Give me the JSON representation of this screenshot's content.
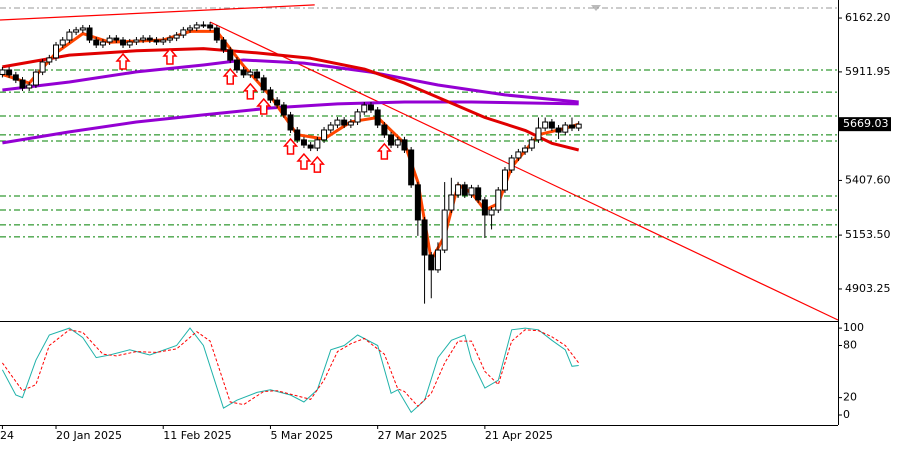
{
  "chart_data": {
    "type": "candlestick",
    "categories": [
      "24",
      null,
      null,
      null,
      null,
      null,
      null,
      null,
      "20 Jan 2025",
      null,
      null,
      null,
      null,
      null,
      null,
      null,
      null,
      null,
      null,
      null,
      null,
      null,
      null,
      null,
      "11 Feb 2025",
      null,
      null,
      null,
      null,
      null,
      null,
      null,
      null,
      null,
      null,
      null,
      null,
      null,
      null,
      null,
      "5 Mar 2025",
      null,
      null,
      null,
      null,
      null,
      null,
      null,
      null,
      null,
      null,
      null,
      null,
      null,
      null,
      null,
      "27 Mar 2025",
      null,
      null,
      null,
      null,
      null,
      null,
      null,
      null,
      null,
      null,
      null,
      null,
      null,
      null,
      null,
      "21 Apr 2025",
      null,
      null,
      null,
      null,
      null,
      null,
      null,
      null,
      null,
      null,
      null,
      null,
      null,
      null
    ],
    "open": [
      5900,
      5921,
      5898,
      5874,
      5837,
      5851,
      5911,
      5958,
      5977,
      6037,
      6060,
      6097,
      6107,
      6116,
      6060,
      6037,
      6051,
      6069,
      6060,
      6037,
      6051,
      6060,
      6069,
      6060,
      6051,
      6060,
      6069,
      6083,
      6107,
      6116,
      6130,
      6130,
      6116,
      6060,
      6014,
      5967,
      5921,
      5898,
      5911,
      5884,
      5828,
      5781,
      5758,
      5712,
      5642,
      5596,
      5572,
      5558,
      5596,
      5642,
      5665,
      5688,
      5665,
      5679,
      5726,
      5758,
      5735,
      5665,
      5619,
      5572,
      5596,
      5549,
      5387,
      5224,
      5061,
      4992,
      5084,
      5270,
      5340,
      5387,
      5340,
      5373,
      5317,
      5247,
      5270,
      5363,
      5456,
      5512,
      5540,
      5558,
      5596,
      5651,
      5679,
      5651,
      5632,
      5665,
      5651
    ],
    "high": [
      5935,
      5935,
      5912,
      5888,
      5865,
      5925,
      5972,
      5991,
      6051,
      6074,
      6111,
      6121,
      6130,
      6130,
      6074,
      6065,
      6083,
      6083,
      6074,
      6065,
      6074,
      6083,
      6083,
      6074,
      6074,
      6083,
      6097,
      6121,
      6130,
      6144,
      6147,
      6144,
      6130,
      6074,
      6028,
      5981,
      5935,
      5925,
      5925,
      5898,
      5842,
      5795,
      5772,
      5726,
      5656,
      5610,
      5586,
      5610,
      5656,
      5679,
      5702,
      5702,
      5693,
      5740,
      5772,
      5772,
      5749,
      5679,
      5633,
      5610,
      5610,
      5563,
      5401,
      5238,
      5075,
      5120,
      5400,
      5420,
      5401,
      5401,
      5387,
      5387,
      5331,
      5284,
      5377,
      5470,
      5526,
      5554,
      5572,
      5610,
      5700,
      5700,
      5693,
      5665,
      5679,
      5700,
      5683
    ],
    "low": [
      5886,
      5884,
      5860,
      5823,
      5823,
      5837,
      5897,
      5944,
      5963,
      6023,
      6046,
      6083,
      6093,
      6046,
      6023,
      6023,
      6037,
      6046,
      6023,
      6023,
      6037,
      6046,
      6046,
      6037,
      6037,
      6046,
      6055,
      6069,
      6093,
      6102,
      6116,
      6102,
      6046,
      6000,
      5953,
      5907,
      5884,
      5884,
      5870,
      5814,
      5767,
      5744,
      5698,
      5628,
      5582,
      5558,
      5544,
      5544,
      5582,
      5628,
      5651,
      5651,
      5651,
      5665,
      5712,
      5721,
      5651,
      5605,
      5558,
      5558,
      5535,
      5373,
      5150,
      4835,
      4860,
      4978,
      5070,
      5256,
      5326,
      5326,
      5326,
      5303,
      5140,
      5180,
      5256,
      5349,
      5442,
      5498,
      5526,
      5544,
      5582,
      5637,
      5637,
      5600,
      5618,
      5637,
      5637
    ],
    "close": [
      5921,
      5898,
      5874,
      5837,
      5851,
      5911,
      5958,
      5977,
      6037,
      6060,
      6097,
      6107,
      6116,
      6060,
      6037,
      6051,
      6069,
      6060,
      6037,
      6051,
      6060,
      6069,
      6060,
      6051,
      6060,
      6069,
      6083,
      6107,
      6116,
      6130,
      6130,
      6116,
      6060,
      6014,
      5967,
      5921,
      5898,
      5911,
      5884,
      5828,
      5781,
      5758,
      5712,
      5642,
      5596,
      5572,
      5558,
      5596,
      5642,
      5665,
      5688,
      5665,
      5679,
      5726,
      5758,
      5735,
      5665,
      5619,
      5572,
      5596,
      5549,
      5387,
      5224,
      5061,
      4992,
      5084,
      5270,
      5340,
      5387,
      5340,
      5373,
      5317,
      5247,
      5270,
      5363,
      5456,
      5512,
      5540,
      5558,
      5596,
      5651,
      5679,
      5651,
      5632,
      5665,
      5651,
      5669.03
    ],
    "up_color": "#ffffff",
    "down_color": "#000000",
    "outline_color": "#000000",
    "xlim": [
      -0.36,
      124.7
    ],
    "ylim": [
      4759,
      6246
    ],
    "yticks": [
      {
        "value": 6162.2,
        "label": "6162.20"
      },
      {
        "value": 5911.95,
        "label": "5911.95"
      },
      {
        "value": 5407.6,
        "label": "5407.60"
      },
      {
        "value": 5153.5,
        "label": "5153.50"
      },
      {
        "value": 4903.25,
        "label": "4903.25"
      }
    ],
    "lines": [
      {
        "color": "#9400d3",
        "width": 3,
        "x": [
          0,
          10,
          20,
          30,
          40,
          50,
          60,
          70,
          86
        ],
        "values": [
          5582,
          5633,
          5679,
          5712,
          5744,
          5763,
          5772,
          5772,
          5763
        ]
      },
      {
        "color": "#9400d3",
        "width": 3,
        "x": [
          0,
          10,
          20,
          30,
          36,
          45,
          55,
          65,
          75,
          86
        ],
        "values": [
          5828,
          5865,
          5912,
          5944,
          5967,
          5953,
          5911,
          5851,
          5805,
          5772
        ]
      },
      {
        "color": "#e00000",
        "width": 3,
        "x": [
          0,
          10,
          20,
          30,
          38,
          46,
          54,
          60,
          66,
          72,
          78,
          82,
          86
        ],
        "values": [
          5935,
          5990,
          6010,
          6020,
          6000,
          5975,
          5925,
          5860,
          5780,
          5700,
          5640,
          5580,
          5549
        ]
      },
      {
        "color": "#ff4500",
        "width": 3,
        "x": [
          0,
          4,
          8,
          12,
          16,
          20,
          24,
          28,
          32,
          36,
          40,
          44,
          48,
          52,
          56,
          60,
          62,
          64,
          66,
          68,
          70,
          72,
          74,
          76,
          80,
          84,
          86
        ],
        "values": [
          5900,
          5860,
          6000,
          6090,
          6050,
          6055,
          6060,
          6100,
          6100,
          5940,
          5800,
          5620,
          5600,
          5680,
          5700,
          5580,
          5400,
          5038,
          5150,
          5387,
          5350,
          5270,
          5300,
          5470,
          5620,
          5650,
          5669
        ]
      }
    ],
    "trendlines": [
      {
        "color": "#ff0000",
        "x": [
          31,
          124.7
        ],
        "values": [
          6144,
          4759
        ]
      },
      {
        "color": "#ff0000",
        "x": [
          -0.36,
          46.6
        ],
        "values": [
          6153,
          6223
        ]
      }
    ],
    "levels": [
      {
        "value": 6209,
        "color": "#999999"
      },
      {
        "value": 5921,
        "color": "#008000"
      },
      {
        "value": 5818,
        "color": "#008000"
      },
      {
        "value": 5707,
        "color": "#008000"
      },
      {
        "value": 5619,
        "color": "#008000"
      },
      {
        "value": 5591,
        "color": "#008000"
      },
      {
        "value": 5335,
        "color": "#008000"
      },
      {
        "value": 5270,
        "color": "#008000"
      },
      {
        "value": 5201,
        "color": "#008000"
      },
      {
        "value": 5145,
        "color": "#008000"
      }
    ],
    "up_arrows": [
      18,
      25,
      34,
      37,
      39,
      43,
      45,
      47,
      57
    ],
    "arrow_color": "#ff0000",
    "oscillator": {
      "ylim": [
        -11.5,
        107
      ],
      "yticks": [
        100,
        80,
        20,
        0
      ],
      "lines": [
        {
          "color": "#20b2aa",
          "dash": false,
          "x": [
            0,
            2,
            3,
            5,
            7,
            10,
            12,
            14,
            16,
            19,
            22,
            26,
            28,
            30,
            33,
            35,
            38,
            40,
            43,
            45,
            47,
            49,
            51,
            53,
            56,
            58,
            59,
            61,
            63,
            65,
            67,
            69,
            70,
            72,
            74,
            76,
            78,
            80,
            82,
            84,
            85,
            86
          ],
          "values": [
            52,
            23,
            20,
            63,
            92,
            100,
            89,
            66,
            69,
            75,
            69,
            80,
            100,
            80,
            8,
            17,
            26,
            29,
            23,
            15,
            29,
            75,
            80,
            92,
            80,
            25,
            29,
            3,
            17,
            66,
            86,
            92,
            63,
            31,
            40,
            98,
            100,
            98,
            86,
            75,
            56,
            57
          ]
        },
        {
          "color": "#ff0000",
          "dash": true,
          "x": [
            0,
            3,
            5,
            7,
            10,
            12,
            15,
            17,
            20,
            23,
            26,
            29,
            31,
            34,
            36,
            39,
            41,
            44,
            46,
            48,
            50,
            52,
            54,
            57,
            59,
            60,
            62,
            64,
            66,
            68,
            70,
            72,
            74,
            76,
            78,
            80,
            82,
            84,
            86
          ],
          "values": [
            60,
            28,
            35,
            80,
            98,
            95,
            70,
            68,
            73,
            72,
            76,
            96,
            85,
            15,
            12,
            27,
            28,
            22,
            18,
            40,
            73,
            82,
            88,
            70,
            30,
            27,
            10,
            25,
            60,
            85,
            85,
            50,
            35,
            85,
            98,
            97,
            90,
            80,
            60
          ]
        }
      ]
    }
  }
}
